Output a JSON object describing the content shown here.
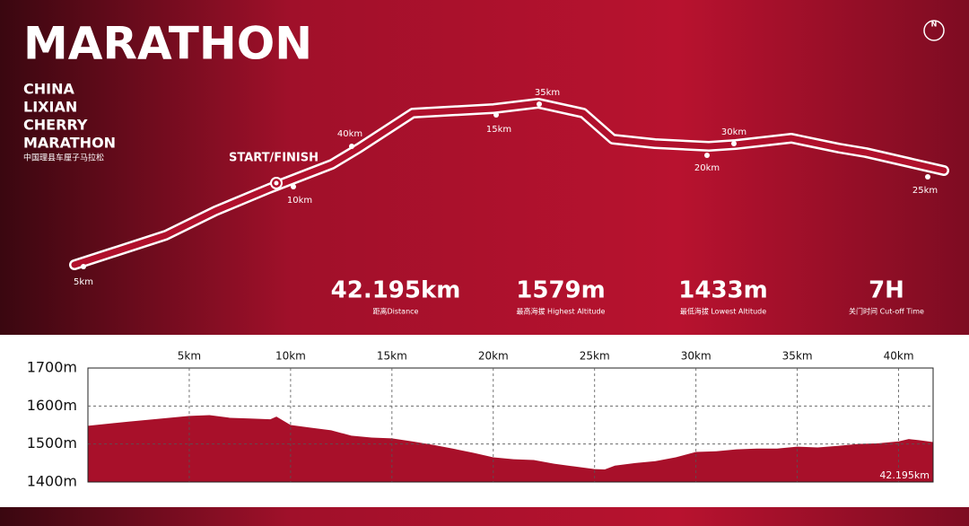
{
  "header": {
    "title": "MARATHON",
    "subtitle_lines": [
      "CHINA",
      "LIXIAN",
      "CHERRY",
      "MARATHON"
    ],
    "subtitle_cn": "中国理县车厘子马拉松"
  },
  "map": {
    "start_label": "START/FINISH",
    "markers": [
      "5km",
      "10km",
      "15km",
      "20km",
      "25km",
      "30km",
      "35km",
      "40km"
    ],
    "compass": "N"
  },
  "stats": [
    {
      "value": "42.195km",
      "label": "距离Distance"
    },
    {
      "value": "1579m",
      "label": "最高海拔 Highest Altitude"
    },
    {
      "value": "1433m",
      "label": "最低海拔 Lowest Altitude"
    },
    {
      "value": "7H",
      "label": "关门时间 Cut-off Time"
    }
  ],
  "chart_data": {
    "type": "area",
    "color": "#a8102a",
    "distance_label": "42.195km",
    "x": [
      0,
      2,
      4,
      5,
      6,
      7,
      8,
      9,
      9.3,
      10,
      11,
      12,
      13,
      14,
      15,
      16,
      17,
      18,
      19,
      20,
      21,
      22,
      23,
      24,
      25,
      25.5,
      26,
      27,
      28,
      29,
      30,
      31,
      32,
      33,
      34,
      35,
      36,
      37,
      38,
      39,
      40,
      40.5,
      41,
      41.7
    ],
    "values": [
      1548,
      1559,
      1569,
      1574,
      1576,
      1569,
      1567,
      1565,
      1572,
      1550,
      1543,
      1536,
      1522,
      1517,
      1515,
      1507,
      1498,
      1488,
      1477,
      1465,
      1460,
      1458,
      1448,
      1441,
      1434,
      1433,
      1443,
      1450,
      1455,
      1465,
      1479,
      1481,
      1486,
      1488,
      1488,
      1493,
      1491,
      1495,
      1500,
      1502,
      1507,
      1513,
      1510,
      1505
    ],
    "xlim": [
      0,
      41.7
    ],
    "ylim": [
      1400,
      1700
    ],
    "xticks": [
      {
        "value": 5,
        "label": "5km"
      },
      {
        "value": 10,
        "label": "10km"
      },
      {
        "value": 15,
        "label": "15km"
      },
      {
        "value": 20,
        "label": "20km"
      },
      {
        "value": 25,
        "label": "25km"
      },
      {
        "value": 30,
        "label": "30km"
      },
      {
        "value": 35,
        "label": "35km"
      },
      {
        "value": 40,
        "label": "40km"
      }
    ],
    "yticks": [
      {
        "value": 1400,
        "label": "1400m"
      },
      {
        "value": 1500,
        "label": "1500m"
      },
      {
        "value": 1600,
        "label": "1600m"
      },
      {
        "value": 1700,
        "label": "1700m"
      }
    ],
    "grid": true
  }
}
